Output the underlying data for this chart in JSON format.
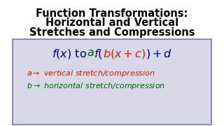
{
  "title_line1": "Function Transformations:",
  "title_line2": "Horizontal and Vertical",
  "title_line3": "Stretches and Compressions",
  "bg_color": "#ffffff",
  "box_bg": "#d8d8e8",
  "box_edge": "#7777aa",
  "title_color": "#000000",
  "color_blue": "#000080",
  "color_green": "#006400",
  "color_red": "#cc2200",
  "note1_color": "#cc2200",
  "note2_color": "#006400",
  "title_fontsize": 10.5,
  "formula_fontsize": 11.5,
  "note_fontsize": 8.0
}
